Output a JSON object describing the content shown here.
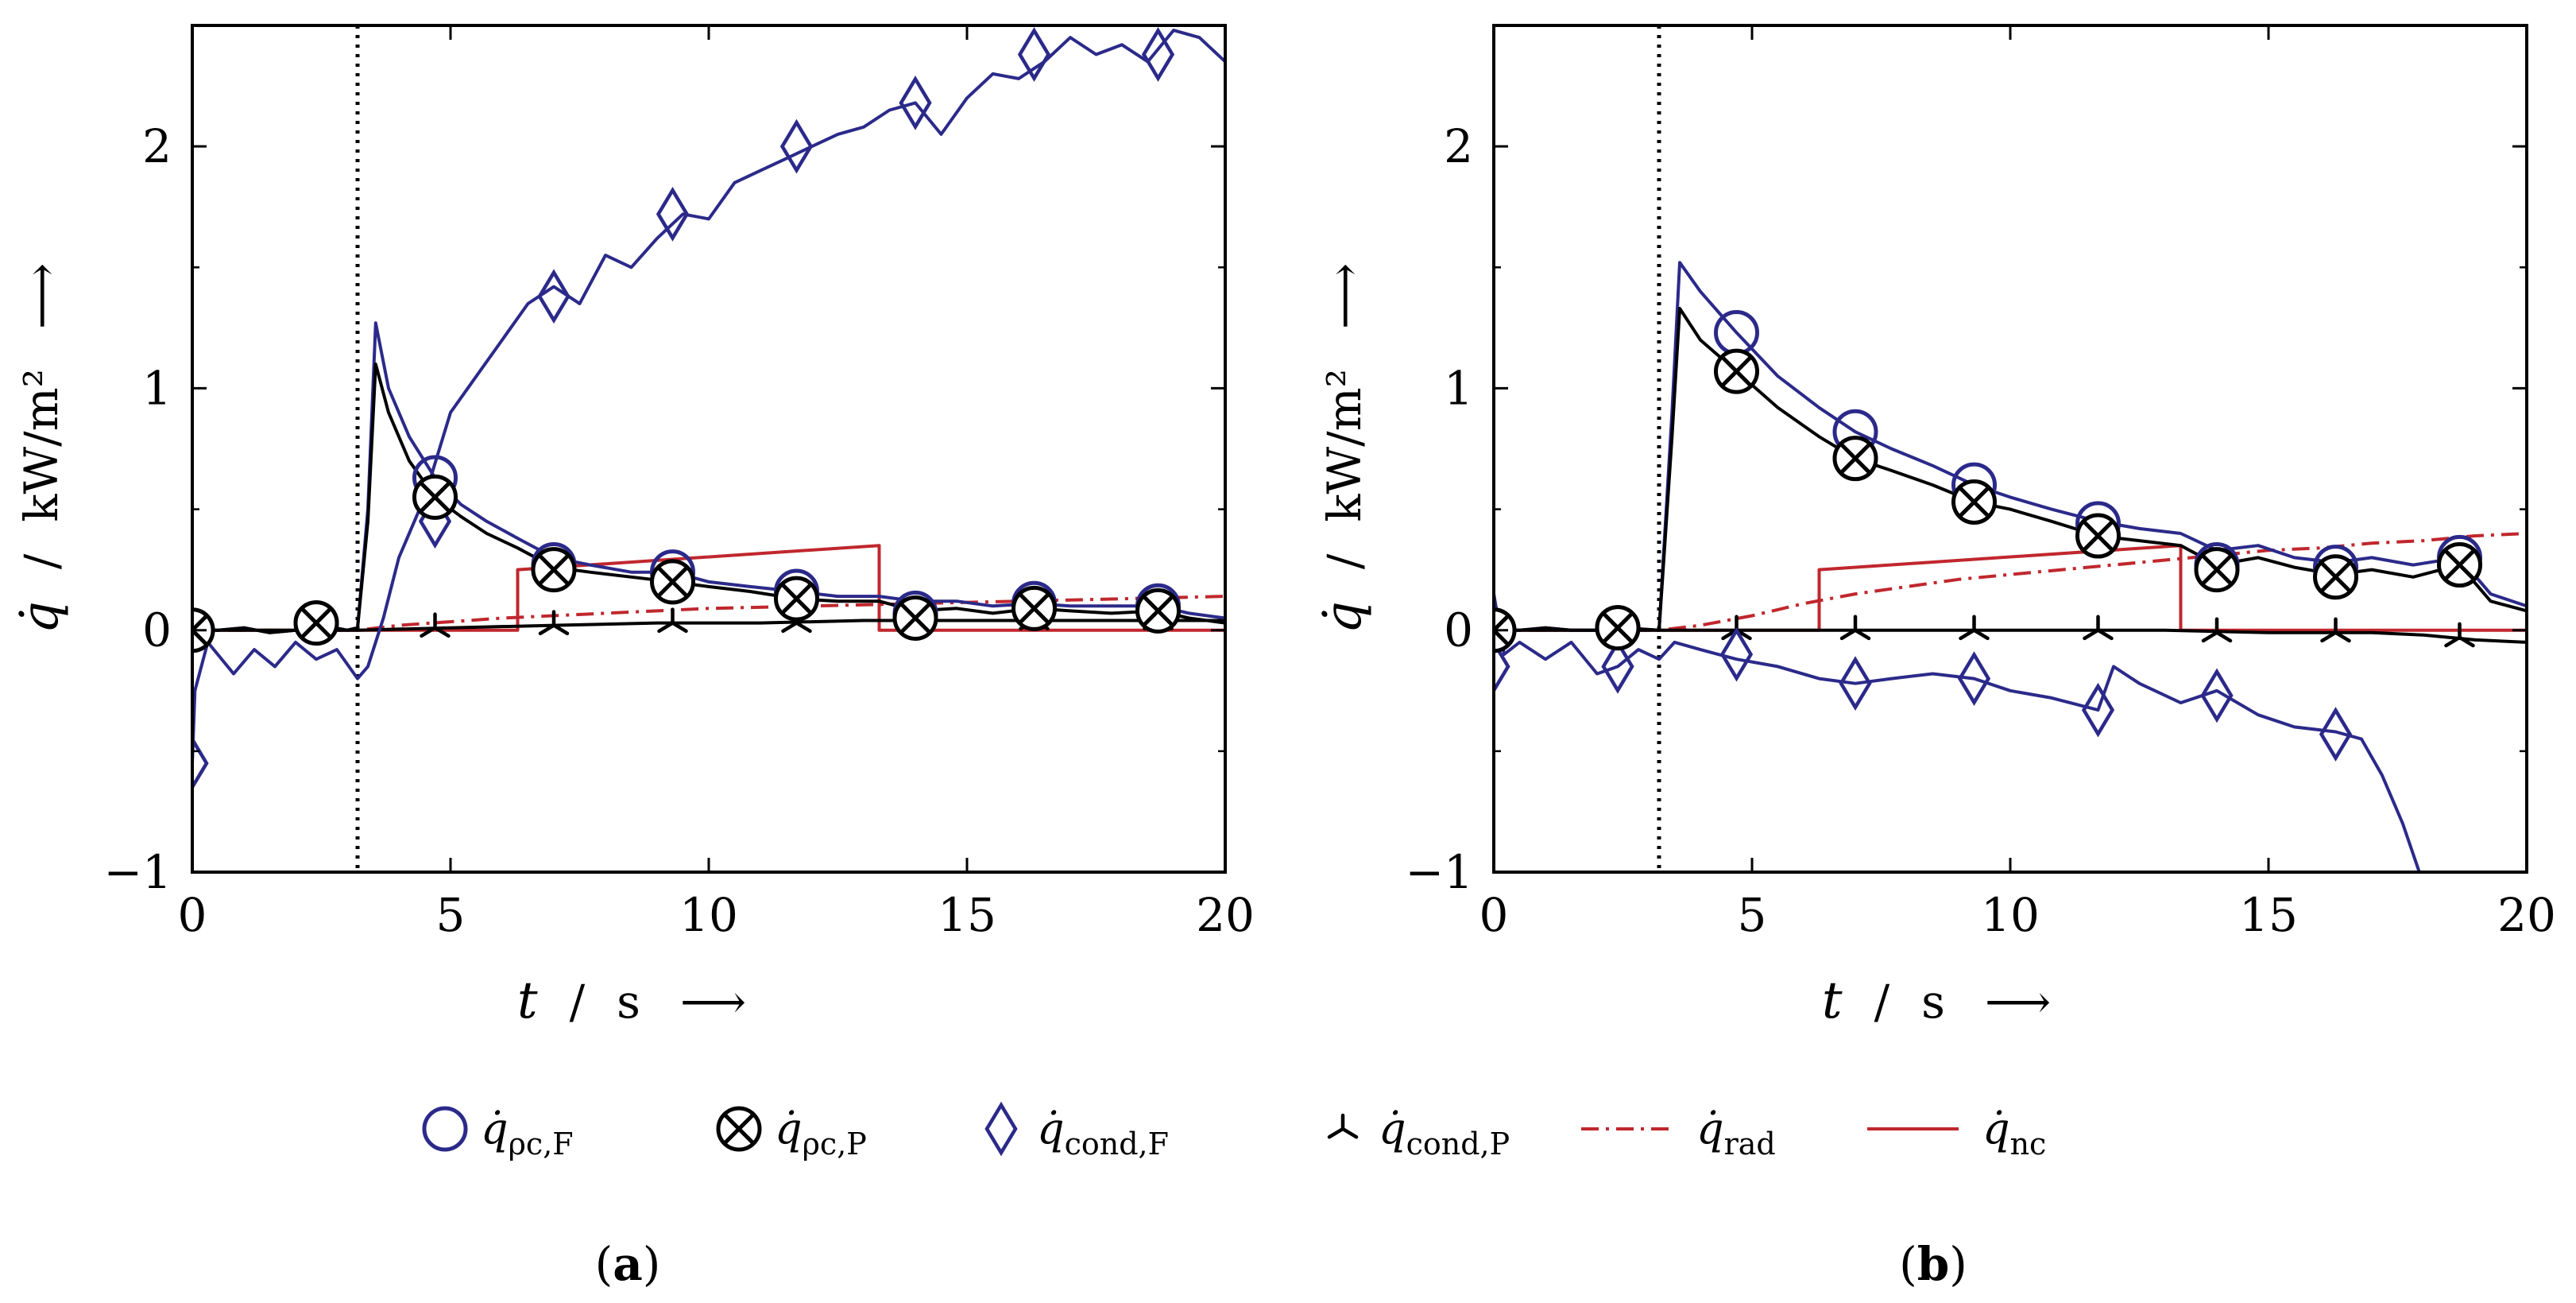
{
  "figure": {
    "legend": [
      {
        "key": "q_rhoc_F",
        "base": "q̇",
        "sub": "ρc,F",
        "marker": "circle",
        "color": "#2b2a8a",
        "line": "solid"
      },
      {
        "key": "q_rhoc_P",
        "base": "q̇",
        "sub": "ρc,P",
        "marker": "otimes",
        "color": "#000000",
        "line": "solid"
      },
      {
        "key": "q_cond_F",
        "base": "q̇",
        "sub": "cond,F",
        "marker": "diamond",
        "color": "#2b2a8a",
        "line": "solid"
      },
      {
        "key": "q_cond_P",
        "base": "q̇",
        "sub": "cond,P",
        "marker": "tri",
        "color": "#000000",
        "line": "solid"
      },
      {
        "key": "q_rad",
        "base": "q̇",
        "sub": "rad",
        "marker": "none",
        "color": "#c0272d",
        "line": "dashdot"
      },
      {
        "key": "q_nc",
        "base": "q̇",
        "sub": "nc",
        "marker": "none",
        "color": "#c0272d",
        "line": "solid"
      }
    ]
  },
  "chart_data": [
    {
      "type": "line",
      "panel_label": {
        "open": "(",
        "letter": "a",
        "close": ")"
      },
      "xlabel": {
        "symbol": "t",
        "sep": "/",
        "unit": "s",
        "arrow": "⟶"
      },
      "ylabel": {
        "symbol": "q̇",
        "sep": "/",
        "unit": "kW/m²",
        "arrow": "⟶"
      },
      "xlim": [
        0,
        20
      ],
      "ylim": [
        -1,
        2.5
      ],
      "xticks": [
        0,
        5,
        10,
        15,
        20
      ],
      "xtick_labels": [
        "0",
        "5",
        "10",
        "15",
        "20"
      ],
      "yticks": [
        -1,
        0,
        1,
        2
      ],
      "ytick_labels": [
        "−1",
        "0",
        "1",
        "2"
      ],
      "grid": false,
      "vline": {
        "x": 3.2,
        "style": "dotted"
      },
      "series": [
        {
          "key": "q_cond_F",
          "color": "#2b2a8a",
          "dash": "solid",
          "x": [
            0,
            0.05,
            0.3,
            0.8,
            1.2,
            1.6,
            2.0,
            2.4,
            2.8,
            3.2,
            3.4,
            3.7,
            4.0,
            4.5,
            5.0,
            5.5,
            6.0,
            6.5,
            7.0,
            7.5,
            8.0,
            8.5,
            9.0,
            9.5,
            10.0,
            10.5,
            11.0,
            11.5,
            12.0,
            12.5,
            13.0,
            13.5,
            14.0,
            14.5,
            15.0,
            15.5,
            16.0,
            16.5,
            17.0,
            17.5,
            18.0,
            18.5,
            19.0,
            19.5,
            20.0
          ],
          "y": [
            -0.55,
            -0.25,
            -0.05,
            -0.18,
            -0.08,
            -0.15,
            -0.05,
            -0.12,
            -0.08,
            -0.2,
            -0.15,
            0.05,
            0.3,
            0.55,
            0.9,
            1.05,
            1.2,
            1.35,
            1.42,
            1.35,
            1.55,
            1.5,
            1.62,
            1.72,
            1.7,
            1.85,
            1.9,
            1.95,
            2.0,
            2.05,
            2.08,
            2.15,
            2.18,
            2.05,
            2.2,
            2.3,
            2.28,
            2.35,
            2.45,
            2.38,
            2.42,
            2.35,
            2.48,
            2.45,
            2.35
          ],
          "markers_x": [
            0,
            4.7,
            7.0,
            9.3,
            11.7,
            14.0,
            16.3,
            18.7
          ],
          "markers_y": [
            -0.55,
            0.45,
            1.38,
            1.72,
            2.0,
            2.18,
            2.38,
            2.38
          ]
        },
        {
          "key": "q_rhoc_F",
          "color": "#2b2a8a",
          "dash": "solid",
          "x": [
            0,
            0.5,
            1.0,
            1.5,
            2.0,
            2.5,
            3.0,
            3.2,
            3.4,
            3.55,
            3.8,
            4.2,
            4.7,
            5.2,
            5.7,
            6.3,
            7.0,
            7.7,
            8.5,
            9.3,
            10.0,
            10.8,
            11.7,
            12.5,
            13.3,
            14.0,
            14.8,
            15.5,
            16.3,
            17.0,
            17.8,
            18.7,
            19.3,
            20.0
          ],
          "y": [
            0,
            0,
            0.01,
            -0.01,
            0,
            0.02,
            0,
            0.01,
            0.5,
            1.27,
            1.0,
            0.8,
            0.63,
            0.52,
            0.45,
            0.38,
            0.3,
            0.27,
            0.24,
            0.24,
            0.2,
            0.18,
            0.16,
            0.14,
            0.14,
            0.12,
            0.12,
            0.1,
            0.11,
            0.1,
            0.1,
            0.1,
            0.07,
            0.05
          ],
          "markers_x": [
            0,
            2.4,
            4.7,
            7.0,
            9.3,
            11.7,
            14.0,
            16.3,
            18.7
          ],
          "markers_y": [
            0,
            0.03,
            0.63,
            0.27,
            0.24,
            0.16,
            0.07,
            0.11,
            0.1
          ]
        },
        {
          "key": "q_rhoc_P",
          "color": "#000000",
          "dash": "solid",
          "x": [
            0,
            0.5,
            1.0,
            1.5,
            2.0,
            2.5,
            3.0,
            3.2,
            3.4,
            3.55,
            3.8,
            4.2,
            4.7,
            5.2,
            5.7,
            6.3,
            7.0,
            7.7,
            8.5,
            9.3,
            10.0,
            10.8,
            11.7,
            12.5,
            13.3,
            14.0,
            14.8,
            15.5,
            16.3,
            17.0,
            17.8,
            18.7,
            19.3,
            20.0
          ],
          "y": [
            0,
            0,
            0.01,
            -0.01,
            0,
            0.02,
            0,
            0.01,
            0.45,
            1.1,
            0.9,
            0.7,
            0.55,
            0.47,
            0.4,
            0.34,
            0.26,
            0.24,
            0.22,
            0.2,
            0.18,
            0.16,
            0.13,
            0.12,
            0.12,
            0.08,
            0.09,
            0.07,
            0.09,
            0.08,
            0.07,
            0.08,
            0.05,
            0.03
          ],
          "markers_x": [
            0,
            2.4,
            4.7,
            7.0,
            9.3,
            11.7,
            14.0,
            16.3,
            18.7
          ],
          "markers_y": [
            0,
            0.03,
            0.55,
            0.25,
            0.2,
            0.13,
            0.05,
            0.09,
            0.08
          ]
        },
        {
          "key": "q_cond_P",
          "color": "#000000",
          "dash": "solid",
          "x": [
            0,
            2.0,
            3.2,
            5.0,
            7.0,
            9.0,
            11.0,
            13.0,
            15.0,
            17.0,
            20.0
          ],
          "y": [
            0,
            0,
            0,
            0.01,
            0.02,
            0.03,
            0.03,
            0.04,
            0.04,
            0.04,
            0.04
          ],
          "markers_x": [
            4.7,
            7.0,
            9.3,
            11.7,
            14.0,
            16.3,
            18.7
          ],
          "markers_y": [
            0.01,
            0.02,
            0.03,
            0.03,
            0.04,
            0.04,
            0.04
          ]
        },
        {
          "key": "q_rad",
          "color": "#c0272d",
          "dash": "dashdot",
          "x": [
            0,
            3.2,
            4.0,
            6.0,
            8.0,
            10.0,
            12.0,
            14.0,
            16.0,
            18.0,
            20.0
          ],
          "y": [
            0,
            0,
            0.02,
            0.05,
            0.07,
            0.09,
            0.1,
            0.11,
            0.12,
            0.13,
            0.14
          ]
        },
        {
          "key": "q_nc",
          "color": "#c0272d",
          "dash": "solid",
          "x": [
            0,
            6.3,
            6.3,
            13.3,
            13.3,
            20.0
          ],
          "y": [
            0,
            0,
            0.25,
            0.35,
            0,
            0
          ]
        }
      ]
    },
    {
      "type": "line",
      "panel_label": {
        "open": "(",
        "letter": "b",
        "close": ")"
      },
      "xlabel": {
        "symbol": "t",
        "sep": "/",
        "unit": "s",
        "arrow": "⟶"
      },
      "ylabel": {
        "symbol": "q̇",
        "sep": "/",
        "unit": "kW/m²",
        "arrow": "⟶"
      },
      "xlim": [
        0,
        20
      ],
      "ylim": [
        -1,
        2.5
      ],
      "xticks": [
        0,
        5,
        10,
        15,
        20
      ],
      "xtick_labels": [
        "0",
        "5",
        "10",
        "15",
        "20"
      ],
      "yticks": [
        -1,
        0,
        1,
        2
      ],
      "ytick_labels": [
        "−1",
        "0",
        "1",
        "2"
      ],
      "grid": false,
      "vline": {
        "x": 3.2,
        "style": "dotted"
      },
      "series": [
        {
          "key": "q_cond_F",
          "color": "#2b2a8a",
          "dash": "solid",
          "x": [
            0,
            0.2,
            0.5,
            1.0,
            1.5,
            2.0,
            2.4,
            2.8,
            3.2,
            3.5,
            4.0,
            4.7,
            5.5,
            6.3,
            7.0,
            7.7,
            8.5,
            9.3,
            10.0,
            10.8,
            11.7,
            12.0,
            12.5,
            13.3,
            14.0,
            14.8,
            15.5,
            16.3,
            16.8,
            17.2,
            17.6,
            18.0
          ],
          "y": [
            0.15,
            -0.1,
            -0.05,
            -0.12,
            -0.05,
            -0.18,
            -0.15,
            -0.08,
            -0.12,
            -0.05,
            -0.08,
            -0.12,
            -0.15,
            -0.2,
            -0.22,
            -0.2,
            -0.18,
            -0.2,
            -0.25,
            -0.28,
            -0.33,
            -0.15,
            -0.22,
            -0.3,
            -0.25,
            -0.35,
            -0.4,
            -0.42,
            -0.45,
            -0.6,
            -0.8,
            -1.05
          ],
          "markers_x": [
            0,
            2.4,
            4.7,
            7.0,
            9.3,
            11.7,
            14.0,
            16.3
          ],
          "markers_y": [
            -0.15,
            -0.15,
            -0.1,
            -0.22,
            -0.2,
            -0.33,
            -0.27,
            -0.43
          ]
        },
        {
          "key": "q_rhoc_F",
          "color": "#2b2a8a",
          "dash": "solid",
          "x": [
            0,
            0.5,
            1.0,
            1.5,
            2.0,
            2.5,
            3.2,
            3.45,
            3.6,
            4.0,
            4.7,
            5.5,
            6.3,
            7.0,
            7.7,
            8.5,
            9.3,
            10.0,
            10.8,
            11.7,
            12.5,
            13.3,
            14.0,
            14.8,
            15.5,
            16.3,
            17.0,
            17.8,
            18.7,
            19.3,
            20.0
          ],
          "y": [
            0,
            0,
            0.01,
            0,
            0,
            0.01,
            0,
            0.9,
            1.52,
            1.4,
            1.23,
            1.05,
            0.92,
            0.82,
            0.75,
            0.68,
            0.6,
            0.55,
            0.5,
            0.45,
            0.42,
            0.4,
            0.33,
            0.35,
            0.3,
            0.28,
            0.3,
            0.27,
            0.3,
            0.15,
            0.1
          ],
          "markers_x": [
            0,
            2.4,
            4.7,
            7.0,
            9.3,
            11.7,
            14.0,
            16.3,
            18.7
          ],
          "markers_y": [
            0,
            0.01,
            1.23,
            0.82,
            0.6,
            0.44,
            0.27,
            0.26,
            0.3
          ]
        },
        {
          "key": "q_rhoc_P",
          "color": "#000000",
          "dash": "solid",
          "x": [
            0,
            0.5,
            1.0,
            1.5,
            2.0,
            2.5,
            3.2,
            3.45,
            3.6,
            4.0,
            4.7,
            5.5,
            6.3,
            7.0,
            7.7,
            8.5,
            9.3,
            10.0,
            10.8,
            11.7,
            12.5,
            13.3,
            14.0,
            14.8,
            15.5,
            16.3,
            17.0,
            17.8,
            18.7,
            19.3,
            20.0
          ],
          "y": [
            0,
            0,
            0.01,
            0,
            0,
            0.01,
            0,
            0.8,
            1.33,
            1.2,
            1.07,
            0.92,
            0.8,
            0.71,
            0.66,
            0.6,
            0.53,
            0.5,
            0.45,
            0.39,
            0.37,
            0.35,
            0.27,
            0.3,
            0.26,
            0.23,
            0.25,
            0.22,
            0.27,
            0.12,
            0.08
          ],
          "markers_x": [
            0,
            2.4,
            4.7,
            7.0,
            9.3,
            11.7,
            14.0,
            16.3,
            18.7
          ],
          "markers_y": [
            0,
            0.01,
            1.07,
            0.71,
            0.53,
            0.39,
            0.25,
            0.22,
            0.27
          ]
        },
        {
          "key": "q_cond_P",
          "color": "#000000",
          "dash": "solid",
          "x": [
            0,
            2.0,
            3.2,
            5.0,
            7.0,
            9.0,
            11.0,
            13.0,
            15.0,
            17.0,
            18.0,
            19.0,
            20.0
          ],
          "y": [
            0,
            0,
            0,
            0,
            0,
            0,
            0,
            0,
            -0.01,
            -0.01,
            -0.02,
            -0.04,
            -0.05
          ],
          "markers_x": [
            4.7,
            7.0,
            9.3,
            11.7,
            14.0,
            16.3,
            18.7
          ],
          "markers_y": [
            0,
            0,
            0,
            0,
            -0.01,
            -0.01,
            -0.03
          ]
        },
        {
          "key": "q_rad",
          "color": "#c0272d",
          "dash": "dashdot",
          "x": [
            0,
            3.2,
            4.0,
            5.0,
            6.0,
            7.0,
            8.0,
            9.0,
            10.0,
            11.0,
            12.0,
            13.0,
            14.0,
            15.0,
            16.0,
            17.0,
            18.0,
            19.0,
            20.0
          ],
          "y": [
            0,
            0,
            0.02,
            0.06,
            0.11,
            0.15,
            0.18,
            0.21,
            0.23,
            0.25,
            0.27,
            0.29,
            0.31,
            0.33,
            0.34,
            0.36,
            0.37,
            0.39,
            0.4
          ]
        },
        {
          "key": "q_nc",
          "color": "#c0272d",
          "dash": "solid",
          "x": [
            0,
            6.3,
            6.3,
            13.3,
            13.3,
            20.0
          ],
          "y": [
            0,
            0,
            0.25,
            0.35,
            0,
            0
          ]
        }
      ]
    }
  ]
}
